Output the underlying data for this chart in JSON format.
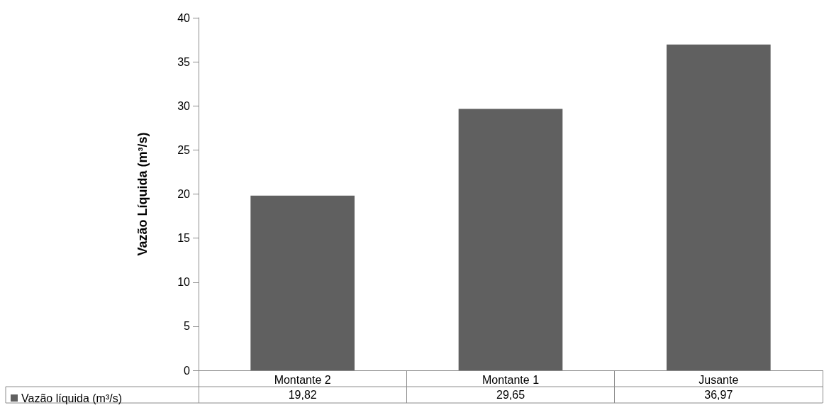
{
  "chart_data": {
    "type": "bar",
    "ylabel": "Vazão Líquida (m³/s)",
    "categories": [
      "Montante 2",
      "Montante 1",
      "Jusante"
    ],
    "series": [
      {
        "name": "Vazão líquida (m³/s)",
        "color": "#606060",
        "values": [
          19.82,
          29.65,
          36.97
        ],
        "value_labels": [
          "19,82",
          "29,65",
          "36,97"
        ]
      }
    ],
    "ylim": [
      0,
      40
    ],
    "yticks": [
      0,
      5,
      10,
      15,
      20,
      25,
      30,
      35,
      40
    ],
    "grid": false,
    "legend": "bottom left"
  }
}
